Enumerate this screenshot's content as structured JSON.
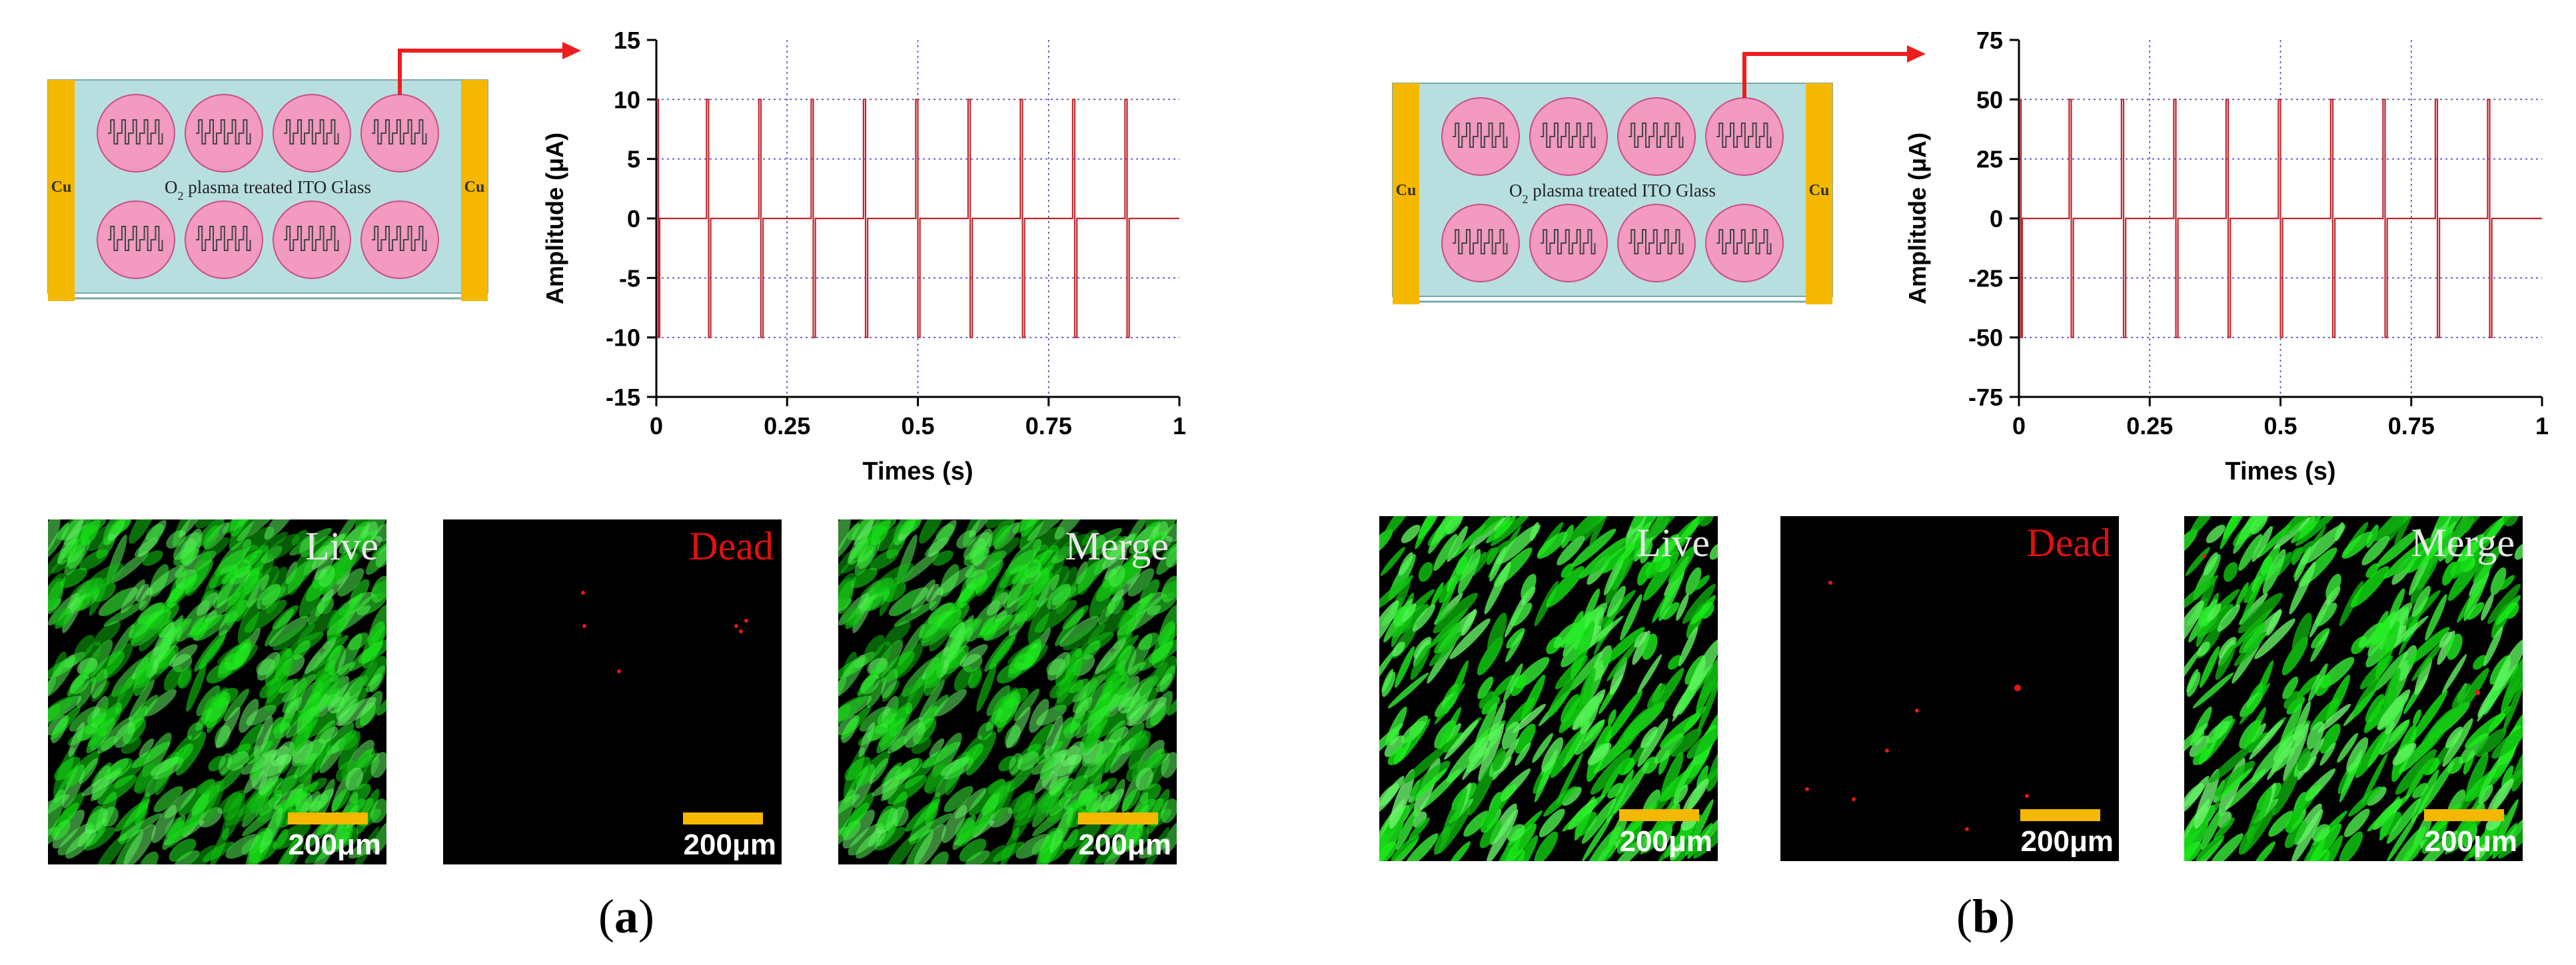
{
  "panels": [
    {
      "id": "a",
      "label_open": "(",
      "label_letter": "a",
      "label_close": ")",
      "diagram": {
        "electrode_left": "Cu",
        "electrode_right": "Cu",
        "glass_label": "O",
        "glass_label_sub": "2",
        "glass_label_rest": " plasma treated ITO Glass",
        "wells_per_row": 4,
        "rows": 2
      },
      "chart_data": {
        "type": "line",
        "xlabel": "Times (s)",
        "ylabel": "Amplitude (μA)",
        "xlim": [
          0,
          1
        ],
        "ylim": [
          -15,
          15
        ],
        "xticks": [
          "0",
          "0.25",
          "0.5",
          "0.75",
          "1"
        ],
        "yticks": [
          "-15",
          "-10",
          "-5",
          "0",
          "5",
          "10",
          "15"
        ],
        "grid": true,
        "series": [
          {
            "amplitude": 10,
            "period": 0.1,
            "pulse_width": 0.004,
            "color": "#c0272d"
          }
        ]
      },
      "images": [
        {
          "title": "Live",
          "title_color": "#e8e8e8",
          "scale": "200μm",
          "kind": "live"
        },
        {
          "title": "Dead",
          "title_color": "#e01010",
          "scale": "200μm",
          "kind": "dead"
        },
        {
          "title": "Merge",
          "title_color": "#e8e8e8",
          "scale": "200μm",
          "kind": "merge"
        }
      ]
    },
    {
      "id": "b",
      "label_open": "(",
      "label_letter": "b",
      "label_close": ")",
      "diagram": {
        "electrode_left": "Cu",
        "electrode_right": "Cu",
        "glass_label": "O",
        "glass_label_sub": "2",
        "glass_label_rest": " plasma treated ITO Glass",
        "wells_per_row": 4,
        "rows": 2
      },
      "chart_data": {
        "type": "line",
        "xlabel": "Times (s)",
        "ylabel": "Amplitude (μA)",
        "xlim": [
          0,
          1
        ],
        "ylim": [
          -75,
          75
        ],
        "xticks": [
          "0",
          "0.25",
          "0.5",
          "0.75",
          "1"
        ],
        "yticks": [
          "-75",
          "-50",
          "-25",
          "0",
          "25",
          "50",
          "75"
        ],
        "grid": true,
        "series": [
          {
            "amplitude": 50,
            "period": 0.1,
            "pulse_width": 0.004,
            "color": "#c0272d"
          }
        ]
      },
      "images": [
        {
          "title": "Live",
          "title_color": "#e8e8e8",
          "scale": "200μm",
          "kind": "live"
        },
        {
          "title": "Dead",
          "title_color": "#e01010",
          "scale": "200μm",
          "kind": "dead"
        },
        {
          "title": "Merge",
          "title_color": "#e8e8e8",
          "scale": "200μm",
          "kind": "merge"
        }
      ]
    }
  ],
  "colors": {
    "electrode": "#f5b800",
    "glass": "#b8dfe0",
    "well_fill": "#f29ac0",
    "well_stroke": "#c84f86",
    "arrow": "#ee1c1c",
    "grid": "#4444cc",
    "scalebar": "#f5b800",
    "cell_green": "#22d022"
  }
}
